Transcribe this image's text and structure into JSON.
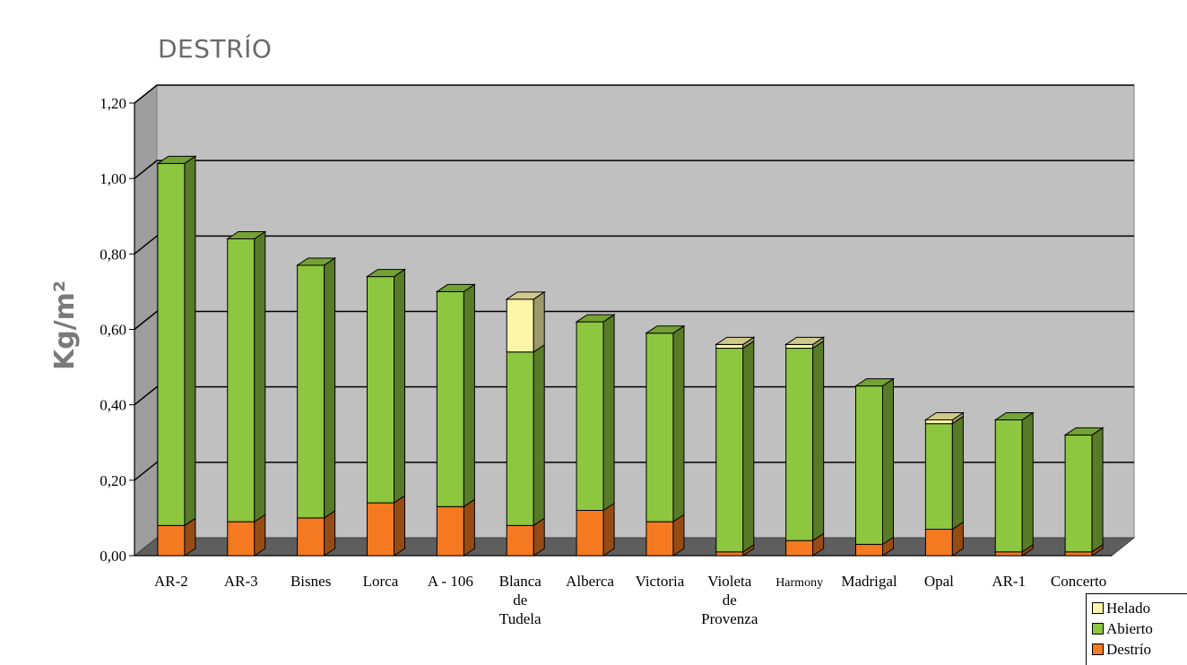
{
  "chart_data": {
    "type": "bar",
    "stacked": true,
    "title": "DESTRÍO",
    "ylabel": "Kg/m²",
    "xlabel": "",
    "ylim": [
      0,
      1.2
    ],
    "yticks": [
      "0,00",
      "0,20",
      "0,40",
      "0,60",
      "0,80",
      "1,00",
      "1,20"
    ],
    "grid": true,
    "legend_position": "bottom-right",
    "categories": [
      "AR-2",
      "AR-3",
      "Bisnes",
      "Lorca",
      "A - 106",
      "Blanca de Tudela",
      "Alberca",
      "Victoria",
      "Violeta de Provenza",
      "Harmony",
      "Madrigal",
      "Opal",
      "AR-1",
      "Concerto"
    ],
    "category_lines": [
      [
        "AR-2"
      ],
      [
        "AR-3"
      ],
      [
        "Bisnes"
      ],
      [
        "Lorca"
      ],
      [
        "A - 106"
      ],
      [
        "Blanca",
        "de",
        "Tudela"
      ],
      [
        "Alberca"
      ],
      [
        "Victoria"
      ],
      [
        "Violeta",
        "de",
        "Provenza"
      ],
      [
        "Harmony"
      ],
      [
        "Madrigal"
      ],
      [
        "Opal"
      ],
      [
        "AR-1"
      ],
      [
        "Concerto"
      ]
    ],
    "series": [
      {
        "name": "Destrío",
        "color": "#f47920",
        "values": [
          0.08,
          0.09,
          0.1,
          0.14,
          0.13,
          0.08,
          0.12,
          0.09,
          0.01,
          0.04,
          0.03,
          0.07,
          0.01,
          0.01
        ]
      },
      {
        "name": "Abierto",
        "color": "#8dc63f",
        "values": [
          0.96,
          0.75,
          0.67,
          0.6,
          0.57,
          0.46,
          0.5,
          0.5,
          0.54,
          0.51,
          0.42,
          0.28,
          0.35,
          0.31
        ]
      },
      {
        "name": "Helado",
        "color": "#fdf6a8",
        "values": [
          0,
          0,
          0,
          0,
          0,
          0.14,
          0,
          0,
          0.01,
          0.01,
          0,
          0.01,
          0,
          0
        ]
      }
    ],
    "legend_order": [
      "Helado",
      "Abierto",
      "Destrío"
    ]
  }
}
